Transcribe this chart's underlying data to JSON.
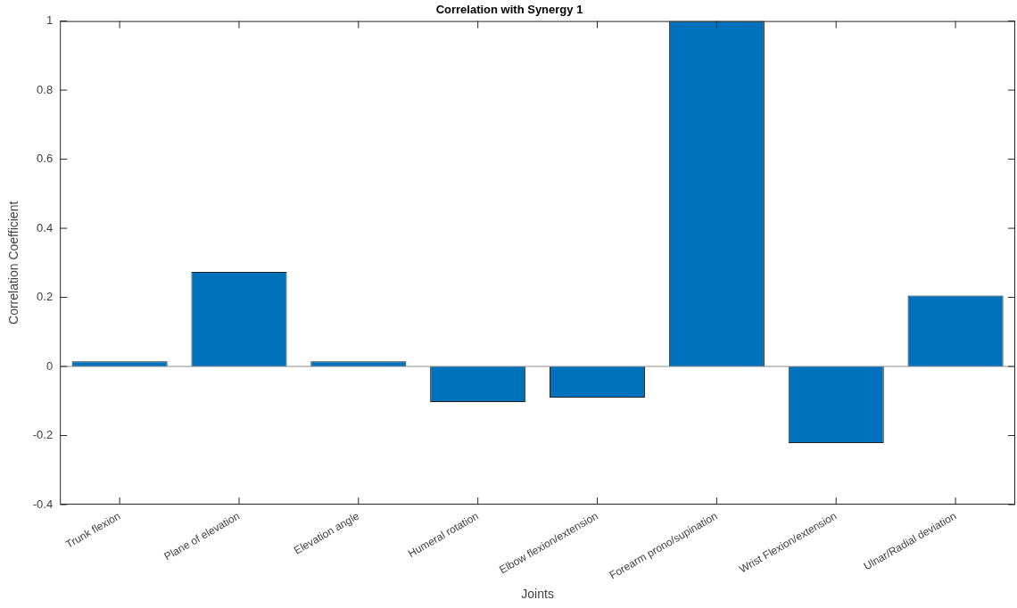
{
  "chart_data": {
    "type": "bar",
    "title": "Correlation with Synergy 1",
    "xlabel": "Joints",
    "ylabel": "Correlation Coefficient",
    "categories": [
      "Trunk flexion",
      "Plane of elevation",
      "Elevation angle",
      "Humeral rotation",
      "Elbow flexion/extension",
      "Forearm prono/supination",
      "Wrist Flexion/extension",
      "Ulnar/Radial deviation"
    ],
    "values": [
      0.015,
      0.274,
      0.015,
      -0.103,
      -0.09,
      1,
      -0.222,
      0.205
    ],
    "color": "#0072bd",
    "ylim": [
      -0.4,
      1
    ],
    "yticks": [
      -0.4,
      -0.2,
      0,
      0.2,
      0.4,
      0.6,
      0.8,
      1
    ],
    "grid": false,
    "legend": false,
    "ref_lines": [
      {
        "axis": "y",
        "value": 0,
        "color": "#8c8c8c"
      }
    ]
  }
}
